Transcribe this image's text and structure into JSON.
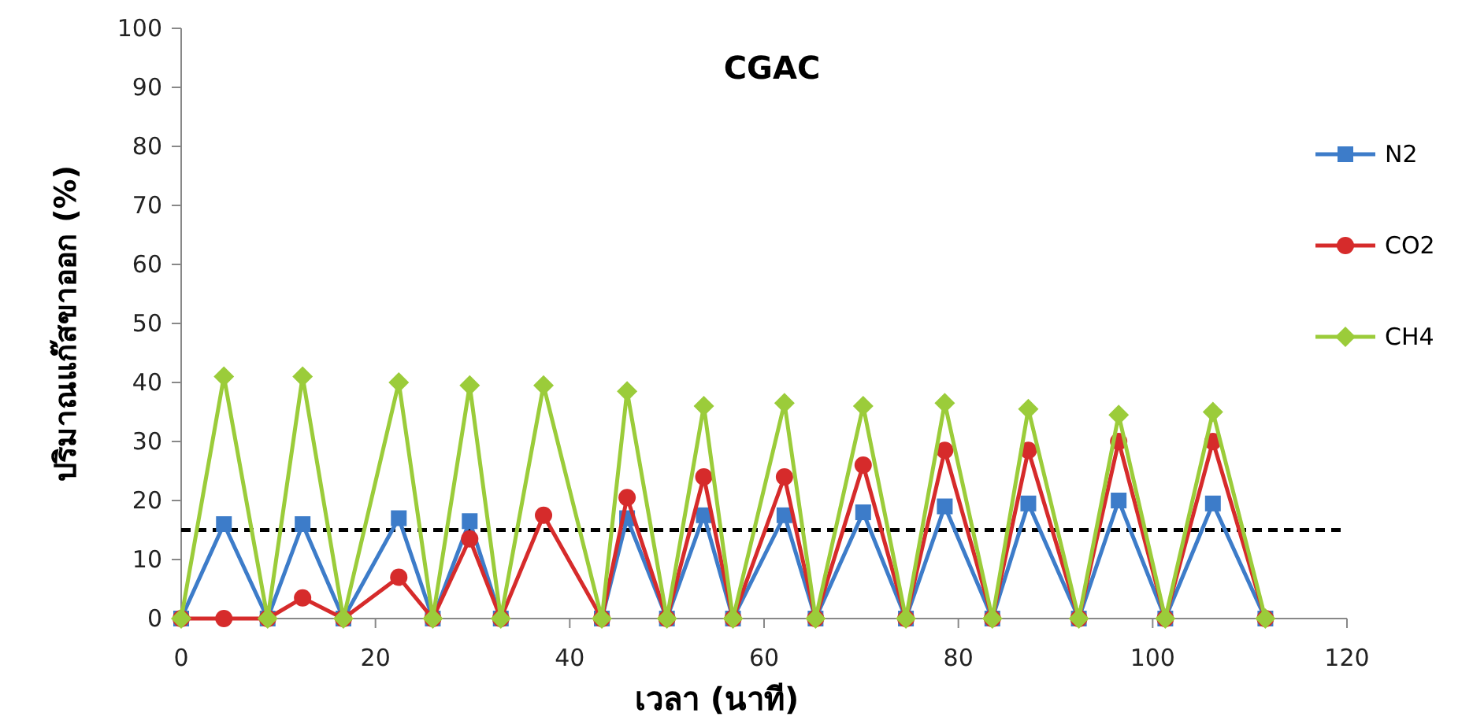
{
  "chart_data": {
    "type": "line",
    "title": "CGAC",
    "xlabel": "เวลา (นาที)",
    "ylabel": "ปริมาณแก๊สขาออก (%)",
    "x": [
      0,
      4.4,
      8.9,
      12.5,
      16.7,
      22.4,
      25.9,
      29.7,
      32.9,
      37.3,
      43.3,
      45.9,
      50,
      53.8,
      56.8,
      62.1,
      65.3,
      70.2,
      74.6,
      78.6,
      83.5,
      87.2,
      92.4,
      96.5,
      101.3,
      106.2,
      111.6
    ],
    "series": [
      {
        "name": "N2",
        "color": "#3d7cc9",
        "marker": "square",
        "values": [
          0,
          16,
          0,
          16,
          0,
          17,
          0,
          16.5,
          0,
          null,
          0,
          17,
          0,
          17.5,
          0,
          17.5,
          0,
          18,
          0,
          19,
          0,
          19.5,
          0,
          20,
          0,
          19.5,
          0
        ]
      },
      {
        "name": "CO2",
        "color": "#d62b2b",
        "marker": "circle",
        "values": [
          0,
          0,
          0,
          3.5,
          0,
          7,
          0,
          13.5,
          0,
          17.5,
          0,
          20.5,
          0,
          24,
          0,
          24,
          0,
          26,
          0,
          28.5,
          0,
          28.5,
          0,
          30,
          0,
          30,
          0
        ]
      },
      {
        "name": "CH4",
        "color": "#9bcc3a",
        "marker": "diamond",
        "values": [
          0,
          41,
          0,
          41,
          0,
          40,
          0,
          39.5,
          0,
          39.5,
          0,
          38.5,
          0,
          36,
          0,
          36.5,
          0,
          36,
          0,
          36.5,
          0,
          35.5,
          0,
          34.5,
          0,
          35,
          0
        ]
      }
    ],
    "xlim": [
      0,
      120
    ],
    "xticks": [
      0,
      20,
      40,
      60,
      80,
      100,
      120
    ],
    "ylim": [
      0,
      100
    ],
    "yticks": [
      0,
      10,
      20,
      30,
      40,
      50,
      60,
      70,
      80,
      90,
      100
    ],
    "ref_lines": [
      {
        "axis": "y",
        "value": 15,
        "color": "#000000",
        "line_style": "dashed"
      }
    ],
    "grid": false,
    "legend": "right"
  }
}
